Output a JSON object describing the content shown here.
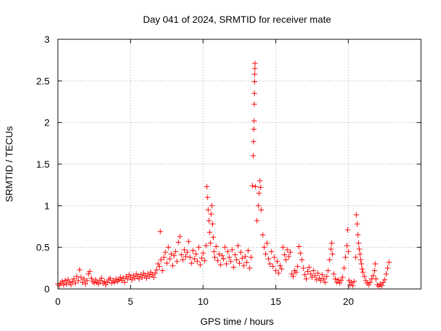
{
  "chart_data": {
    "type": "scatter",
    "title": "Day 041 of 2024, SRMTID for receiver mate",
    "xlabel": "GPS time / hours",
    "ylabel": "SRMTID / TECUs",
    "xlim": [
      0,
      25
    ],
    "ylim": [
      0,
      3
    ],
    "xticks": [
      0,
      5,
      10,
      15,
      20
    ],
    "xtick_labels": [
      "0",
      "5",
      "10",
      "15",
      "20"
    ],
    "yticks": [
      0,
      0.5,
      1,
      1.5,
      2,
      2.5,
      3
    ],
    "ytick_labels": [
      "0",
      "0.5",
      "1",
      "1.5",
      "2",
      "2.5",
      "3"
    ],
    "grid": true,
    "marker": "+",
    "series": [
      {
        "name": "SRMTID",
        "color": "#ff0000",
        "points": [
          [
            0.0,
            0.06
          ],
          [
            0.1,
            0.04
          ],
          [
            0.2,
            0.07
          ],
          [
            0.3,
            0.09
          ],
          [
            0.4,
            0.05
          ],
          [
            0.5,
            0.1
          ],
          [
            0.6,
            0.06
          ],
          [
            0.7,
            0.11
          ],
          [
            0.8,
            0.08
          ],
          [
            0.9,
            0.05
          ],
          [
            1.0,
            0.09
          ],
          [
            1.1,
            0.12
          ],
          [
            1.2,
            0.07
          ],
          [
            1.3,
            0.15
          ],
          [
            1.4,
            0.1
          ],
          [
            1.5,
            0.23
          ],
          [
            1.6,
            0.14
          ],
          [
            1.7,
            0.08
          ],
          [
            1.8,
            0.12
          ],
          [
            1.9,
            0.06
          ],
          [
            2.0,
            0.1
          ],
          [
            2.1,
            0.18
          ],
          [
            2.2,
            0.21
          ],
          [
            2.3,
            0.13
          ],
          [
            2.4,
            0.09
          ],
          [
            2.5,
            0.07
          ],
          [
            2.6,
            0.11
          ],
          [
            2.7,
            0.08
          ],
          [
            2.8,
            0.06
          ],
          [
            2.9,
            0.1
          ],
          [
            3.0,
            0.13
          ],
          [
            3.1,
            0.07
          ],
          [
            3.2,
            0.09
          ],
          [
            3.3,
            0.05
          ],
          [
            3.4,
            0.08
          ],
          [
            3.5,
            0.11
          ],
          [
            3.6,
            0.13
          ],
          [
            3.7,
            0.07
          ],
          [
            3.8,
            0.1
          ],
          [
            3.9,
            0.08
          ],
          [
            4.0,
            0.12
          ],
          [
            4.1,
            0.09
          ],
          [
            4.2,
            0.11
          ],
          [
            4.3,
            0.14
          ],
          [
            4.4,
            0.1
          ],
          [
            4.5,
            0.13
          ],
          [
            4.6,
            0.08
          ],
          [
            4.7,
            0.15
          ],
          [
            4.8,
            0.12
          ],
          [
            4.9,
            0.17
          ],
          [
            5.0,
            0.14
          ],
          [
            5.1,
            0.11
          ],
          [
            5.2,
            0.16
          ],
          [
            5.3,
            0.13
          ],
          [
            5.4,
            0.18
          ],
          [
            5.5,
            0.15
          ],
          [
            5.6,
            0.12
          ],
          [
            5.7,
            0.17
          ],
          [
            5.8,
            0.14
          ],
          [
            5.9,
            0.19
          ],
          [
            6.0,
            0.16
          ],
          [
            6.1,
            0.13
          ],
          [
            6.2,
            0.18
          ],
          [
            6.3,
            0.15
          ],
          [
            6.4,
            0.2
          ],
          [
            6.5,
            0.17
          ],
          [
            6.6,
            0.14
          ],
          [
            6.7,
            0.19
          ],
          [
            6.8,
            0.23
          ],
          [
            6.9,
            0.3
          ],
          [
            7.0,
            0.27
          ],
          [
            7.05,
            0.69
          ],
          [
            7.1,
            0.35
          ],
          [
            7.2,
            0.22
          ],
          [
            7.3,
            0.38
          ],
          [
            7.4,
            0.44
          ],
          [
            7.5,
            0.31
          ],
          [
            7.6,
            0.5
          ],
          [
            7.7,
            0.36
          ],
          [
            7.8,
            0.42
          ],
          [
            7.9,
            0.28
          ],
          [
            8.0,
            0.4
          ],
          [
            8.1,
            0.45
          ],
          [
            8.2,
            0.33
          ],
          [
            8.3,
            0.56
          ],
          [
            8.4,
            0.63
          ],
          [
            8.5,
            0.41
          ],
          [
            8.6,
            0.35
          ],
          [
            8.7,
            0.47
          ],
          [
            8.8,
            0.39
          ],
          [
            8.9,
            0.44
          ],
          [
            9.0,
            0.57
          ],
          [
            9.1,
            0.38
          ],
          [
            9.2,
            0.31
          ],
          [
            9.3,
            0.46
          ],
          [
            9.4,
            0.36
          ],
          [
            9.5,
            0.42
          ],
          [
            9.6,
            0.33
          ],
          [
            9.7,
            0.5
          ],
          [
            9.8,
            0.29
          ],
          [
            9.9,
            0.37
          ],
          [
            10.0,
            0.43
          ],
          [
            10.1,
            0.34
          ],
          [
            10.2,
            0.52
          ],
          [
            10.25,
            1.23
          ],
          [
            10.3,
            1.1
          ],
          [
            10.35,
            0.95
          ],
          [
            10.4,
            0.82
          ],
          [
            10.45,
            0.68
          ],
          [
            10.5,
            0.55
          ],
          [
            10.55,
            0.9
          ],
          [
            10.6,
            1.0
          ],
          [
            10.65,
            0.78
          ],
          [
            10.7,
            0.62
          ],
          [
            10.75,
            0.45
          ],
          [
            10.8,
            0.38
          ],
          [
            10.9,
            0.51
          ],
          [
            11.0,
            0.34
          ],
          [
            11.1,
            0.42
          ],
          [
            11.2,
            0.29
          ],
          [
            11.3,
            0.4
          ],
          [
            11.4,
            0.36
          ],
          [
            11.5,
            0.5
          ],
          [
            11.6,
            0.3
          ],
          [
            11.7,
            0.45
          ],
          [
            11.8,
            0.38
          ],
          [
            11.9,
            0.33
          ],
          [
            12.0,
            0.47
          ],
          [
            12.1,
            0.26
          ],
          [
            12.2,
            0.41
          ],
          [
            12.3,
            0.35
          ],
          [
            12.4,
            0.52
          ],
          [
            12.5,
            0.31
          ],
          [
            12.6,
            0.44
          ],
          [
            12.7,
            0.37
          ],
          [
            12.8,
            0.28
          ],
          [
            12.9,
            0.39
          ],
          [
            13.0,
            0.32
          ],
          [
            13.1,
            0.46
          ],
          [
            13.2,
            0.25
          ],
          [
            13.3,
            0.38
          ],
          [
            13.4,
            1.24
          ],
          [
            13.45,
            1.6
          ],
          [
            13.47,
            1.77
          ],
          [
            13.49,
            1.92
          ],
          [
            13.51,
            2.02
          ],
          [
            13.52,
            2.22
          ],
          [
            13.53,
            2.35
          ],
          [
            13.54,
            2.49
          ],
          [
            13.55,
            2.58
          ],
          [
            13.56,
            2.65
          ],
          [
            13.57,
            2.71
          ],
          [
            13.6,
            1.23
          ],
          [
            13.7,
            0.82
          ],
          [
            13.8,
            1.0
          ],
          [
            13.85,
            1.15
          ],
          [
            13.9,
            1.3
          ],
          [
            13.95,
            1.22
          ],
          [
            14.0,
            0.95
          ],
          [
            14.1,
            0.65
          ],
          [
            14.2,
            0.5
          ],
          [
            14.3,
            0.42
          ],
          [
            14.4,
            0.55
          ],
          [
            14.5,
            0.36
          ],
          [
            14.6,
            0.3
          ],
          [
            14.7,
            0.45
          ],
          [
            14.8,
            0.27
          ],
          [
            14.9,
            0.38
          ],
          [
            15.0,
            0.22
          ],
          [
            15.1,
            0.33
          ],
          [
            15.2,
            0.19
          ],
          [
            15.3,
            0.28
          ],
          [
            15.4,
            0.24
          ],
          [
            15.5,
            0.5
          ],
          [
            15.6,
            0.41
          ],
          [
            15.7,
            0.35
          ],
          [
            15.8,
            0.47
          ],
          [
            15.9,
            0.39
          ],
          [
            16.0,
            0.44
          ],
          [
            16.1,
            0.18
          ],
          [
            16.2,
            0.15
          ],
          [
            16.3,
            0.22
          ],
          [
            16.4,
            0.2
          ],
          [
            16.5,
            0.27
          ],
          [
            16.6,
            0.51
          ],
          [
            16.7,
            0.43
          ],
          [
            16.8,
            0.35
          ],
          [
            16.9,
            0.25
          ],
          [
            17.0,
            0.17
          ],
          [
            17.1,
            0.12
          ],
          [
            17.2,
            0.21
          ],
          [
            17.3,
            0.26
          ],
          [
            17.4,
            0.18
          ],
          [
            17.5,
            0.14
          ],
          [
            17.6,
            0.22
          ],
          [
            17.7,
            0.16
          ],
          [
            17.8,
            0.11
          ],
          [
            17.9,
            0.19
          ],
          [
            18.0,
            0.13
          ],
          [
            18.1,
            0.1
          ],
          [
            18.2,
            0.17
          ],
          [
            18.3,
            0.12
          ],
          [
            18.4,
            0.08
          ],
          [
            18.5,
            0.15
          ],
          [
            18.6,
            0.22
          ],
          [
            18.7,
            0.35
          ],
          [
            18.8,
            0.48
          ],
          [
            18.85,
            0.55
          ],
          [
            18.9,
            0.42
          ],
          [
            19.0,
            0.18
          ],
          [
            19.1,
            0.12
          ],
          [
            19.2,
            0.08
          ],
          [
            19.3,
            0.11
          ],
          [
            19.4,
            0.07
          ],
          [
            19.5,
            0.1
          ],
          [
            19.6,
            0.14
          ],
          [
            19.7,
            0.25
          ],
          [
            19.8,
            0.38
          ],
          [
            19.9,
            0.52
          ],
          [
            19.95,
            0.71
          ],
          [
            20.0,
            0.45
          ],
          [
            20.05,
            0.1
          ],
          [
            20.1,
            0.05
          ],
          [
            20.2,
            0.08
          ],
          [
            20.3,
            0.04
          ],
          [
            20.4,
            0.09
          ],
          [
            20.5,
            0.38
          ],
          [
            20.55,
            0.89
          ],
          [
            20.6,
            0.78
          ],
          [
            20.65,
            0.65
          ],
          [
            20.7,
            0.55
          ],
          [
            20.75,
            0.48
          ],
          [
            20.8,
            0.42
          ],
          [
            20.85,
            0.35
          ],
          [
            20.9,
            0.3
          ],
          [
            20.95,
            0.24
          ],
          [
            21.0,
            0.2
          ],
          [
            21.1,
            0.15
          ],
          [
            21.2,
            0.1
          ],
          [
            21.3,
            0.07
          ],
          [
            21.4,
            0.05
          ],
          [
            21.5,
            0.08
          ],
          [
            21.6,
            0.12
          ],
          [
            21.7,
            0.16
          ],
          [
            21.8,
            0.22
          ],
          [
            21.85,
            0.3
          ],
          [
            21.9,
            0.12
          ],
          [
            22.0,
            0.05
          ],
          [
            22.1,
            0.03
          ],
          [
            22.2,
            0.06
          ],
          [
            22.3,
            0.04
          ],
          [
            22.4,
            0.08
          ],
          [
            22.5,
            0.11
          ],
          [
            22.6,
            0.18
          ],
          [
            22.7,
            0.25
          ],
          [
            22.8,
            0.32
          ]
        ]
      }
    ]
  }
}
